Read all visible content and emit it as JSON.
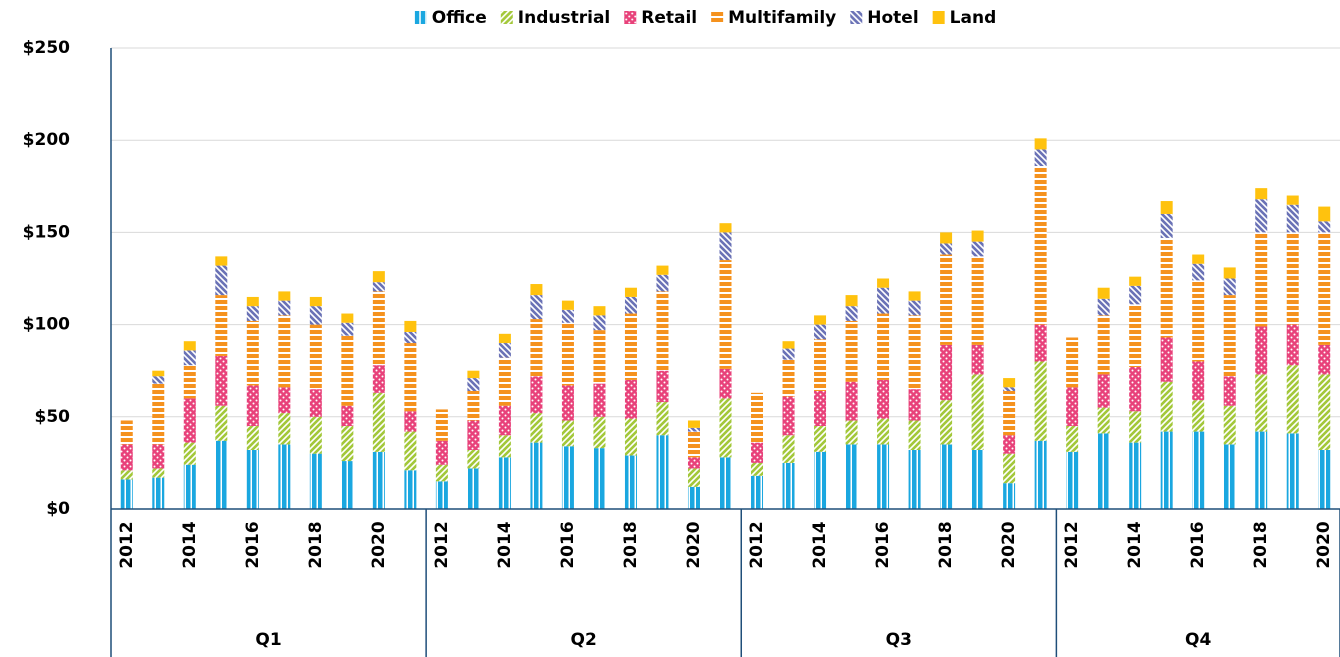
{
  "chart_data": {
    "type": "stacked_bar",
    "groups": [
      {
        "name": "Q1",
        "categories": [
          "2012",
          null,
          "2014",
          null,
          "2016",
          null,
          "2018",
          null,
          "2020",
          null
        ]
      },
      {
        "name": "Q2",
        "categories": [
          "2012",
          null,
          "2014",
          null,
          "2016",
          null,
          "2018",
          null,
          "2020",
          null
        ]
      },
      {
        "name": "Q3",
        "categories": [
          "2012",
          null,
          "2014",
          null,
          "2016",
          null,
          "2018",
          null,
          "2020",
          null
        ]
      },
      {
        "name": "Q4",
        "categories": [
          "2012",
          null,
          "2014",
          null,
          "2016",
          null,
          "2018",
          null,
          "2020"
        ]
      }
    ],
    "series": [
      {
        "name": "Office",
        "color": "#1aa7e0",
        "pattern": "vertical",
        "values": [
          16,
          17,
          24,
          37,
          32,
          35,
          30,
          26,
          31,
          21,
          15,
          22,
          28,
          36,
          34,
          33,
          29,
          40,
          12,
          28,
          18,
          25,
          31,
          35,
          35,
          32,
          35,
          32,
          14,
          37,
          31,
          41,
          36,
          42,
          42,
          35,
          42,
          41,
          32
        ]
      },
      {
        "name": "Industrial",
        "color": "#a3c83a",
        "pattern": "diagonal",
        "values": [
          5,
          5,
          12,
          19,
          13,
          17,
          20,
          19,
          32,
          21,
          9,
          10,
          12,
          16,
          14,
          17,
          20,
          18,
          10,
          32,
          7,
          15,
          14,
          13,
          14,
          16,
          24,
          41,
          16,
          43,
          14,
          14,
          17,
          27,
          17,
          21,
          31,
          37,
          41
        ]
      },
      {
        "name": "Retail",
        "color": "#e8417a",
        "pattern": "dots",
        "values": [
          14,
          13,
          24,
          27,
          22,
          14,
          15,
          11,
          15,
          11,
          13,
          16,
          16,
          20,
          19,
          18,
          21,
          17,
          6,
          16,
          11,
          21,
          19,
          21,
          21,
          17,
          30,
          16,
          10,
          20,
          21,
          18,
          24,
          24,
          21,
          16,
          26,
          22,
          16
        ]
      },
      {
        "name": "Multifamily",
        "color": "#f5921e",
        "pattern": "horizontal",
        "values": [
          13,
          33,
          18,
          33,
          35,
          39,
          35,
          38,
          40,
          37,
          17,
          16,
          26,
          31,
          34,
          29,
          36,
          43,
          14,
          59,
          27,
          20,
          28,
          33,
          36,
          40,
          49,
          48,
          24,
          86,
          27,
          32,
          34,
          54,
          44,
          44,
          51,
          50,
          61
        ]
      },
      {
        "name": "Hotel",
        "color": "#6a72b6",
        "pattern": "diagonal-reverse",
        "values": [
          0,
          4,
          8,
          16,
          8,
          8,
          10,
          7,
          5,
          6,
          0,
          7,
          8,
          13,
          7,
          8,
          9,
          9,
          2,
          15,
          0,
          6,
          8,
          8,
          14,
          8,
          6,
          8,
          2,
          9,
          0,
          9,
          10,
          13,
          9,
          9,
          18,
          15,
          6
        ]
      },
      {
        "name": "Land",
        "color": "#ffc20e",
        "pattern": "solid",
        "values": [
          0,
          3,
          5,
          5,
          5,
          5,
          5,
          5,
          6,
          6,
          0,
          4,
          5,
          6,
          5,
          5,
          5,
          5,
          4,
          5,
          0,
          4,
          5,
          6,
          5,
          5,
          6,
          6,
          5,
          6,
          0,
          6,
          5,
          7,
          5,
          6,
          6,
          5,
          8
        ]
      }
    ],
    "ylim": [
      0,
      250
    ],
    "yticks": [
      {
        "value": 0,
        "label": "$0"
      },
      {
        "value": 50,
        "label": "$50"
      },
      {
        "value": 100,
        "label": "$100"
      },
      {
        "value": 150,
        "label": "$150"
      },
      {
        "value": 200,
        "label": "$200"
      },
      {
        "value": 250,
        "label": "$250"
      }
    ],
    "grid": true,
    "legend": "top"
  }
}
